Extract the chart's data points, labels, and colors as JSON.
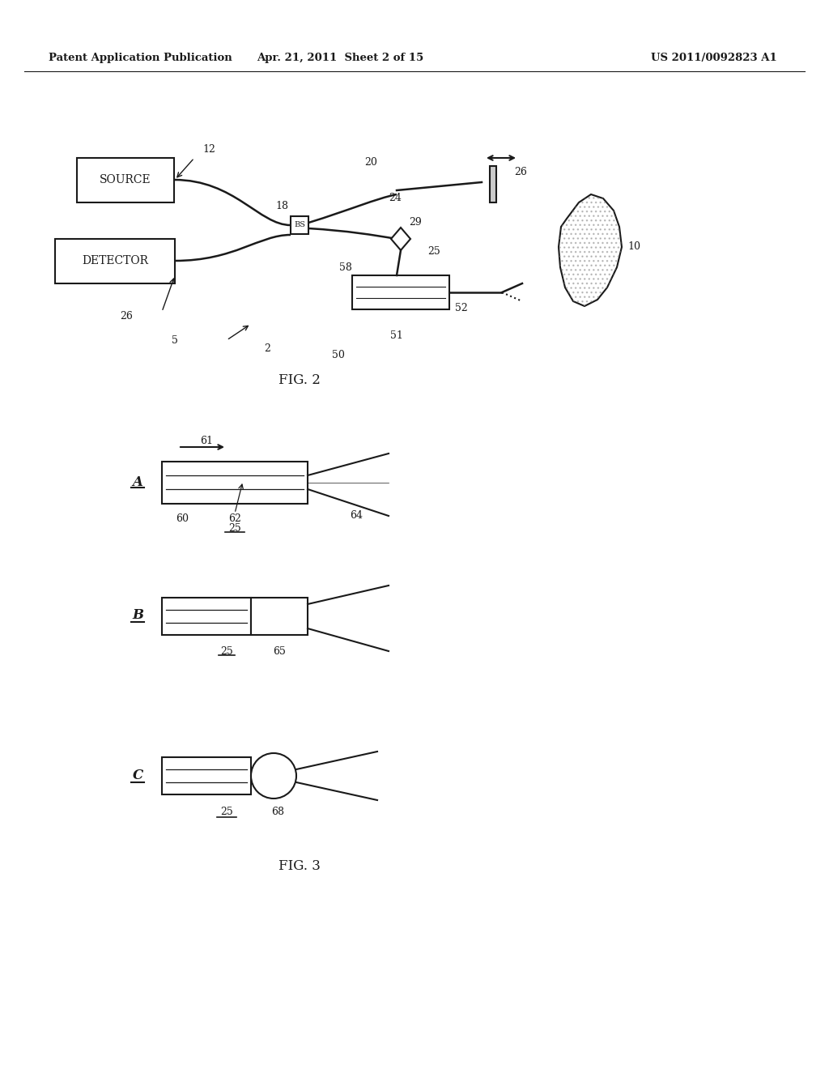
{
  "bg_color": "#ffffff",
  "header_left": "Patent Application Publication",
  "header_mid": "Apr. 21, 2011  Sheet 2 of 15",
  "header_right": "US 2011/0092823 A1",
  "fig2_label": "FIG. 2",
  "fig3_label": "FIG. 3",
  "line_color": "#1a1a1a",
  "box_color": "#1a1a1a",
  "text_color": "#1a1a1a"
}
